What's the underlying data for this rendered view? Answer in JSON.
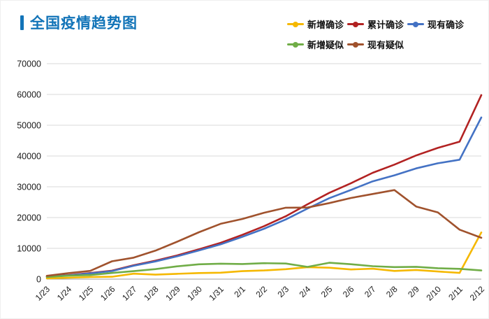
{
  "page": {
    "title": "全国疫情趋势图"
  },
  "theme": {
    "title_color": "#1274b8",
    "grid_color": "#d9d9d9",
    "axis_color": "#9e9e9e",
    "label_color": "#1a1a1a"
  },
  "chart_data": {
    "type": "line",
    "title": "全国疫情趋势图",
    "xlabel": "",
    "ylabel": "",
    "ylim": [
      0,
      70000
    ],
    "y_ticks": [
      0,
      10000,
      20000,
      30000,
      40000,
      50000,
      60000,
      70000
    ],
    "grid": true,
    "legend_position": "top-right",
    "categories": [
      "1/23",
      "1/24",
      "1/25",
      "1/26",
      "1/27",
      "1/28",
      "1/29",
      "1/30",
      "1/31",
      "2/1",
      "2/2",
      "2/3",
      "2/4",
      "2/5",
      "2/6",
      "2/7",
      "2/8",
      "2/9",
      "2/10",
      "2/11",
      "2/12"
    ],
    "series": [
      {
        "name": "新增确诊",
        "color": "#f5b800",
        "values": [
          259,
          444,
          688,
          769,
          1771,
          1459,
          1737,
          1982,
          2102,
          2590,
          2829,
          3235,
          3887,
          3694,
          3143,
          3385,
          2652,
          2973,
          2467,
          2015,
          15152
        ]
      },
      {
        "name": "累计确诊",
        "color": "#b22222",
        "values": [
          830,
          1287,
          1975,
          2744,
          4515,
          5974,
          7711,
          9692,
          11791,
          14380,
          17205,
          20438,
          24324,
          28018,
          31161,
          34546,
          37198,
          40171,
          42638,
          44653,
          59804
        ]
      },
      {
        "name": "现有确诊",
        "color": "#4472c4",
        "values": [
          771,
          1208,
          1870,
          2613,
          4349,
          5739,
          7417,
          9308,
          11289,
          13748,
          16369,
          19381,
          22942,
          26302,
          28985,
          31774,
          33738,
          35982,
          37626,
          38800,
          52526
        ]
      },
      {
        "name": "新增疑似",
        "color": "#70ad47",
        "values": [
          680,
          1118,
          1309,
          2000,
          2600,
          3248,
          4148,
          4812,
          5019,
          4900,
          5173,
          5072,
          3971,
          5328,
          4833,
          4214,
          3916,
          4008,
          3536,
          3342,
          2807
        ]
      },
      {
        "name": "现有疑似",
        "color": "#a0522d",
        "values": [
          1072,
          1965,
          2684,
          5794,
          6973,
          9239,
          12167,
          15238,
          17988,
          19544,
          21558,
          23214,
          23260,
          24702,
          26359,
          27657,
          28942,
          23589,
          21675,
          16067,
          13435
        ]
      }
    ]
  }
}
